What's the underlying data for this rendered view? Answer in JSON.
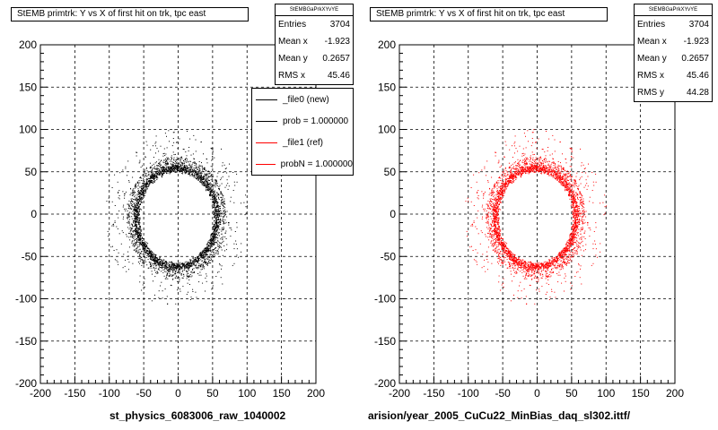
{
  "chart_data": [
    {
      "type": "scatter",
      "title": "StEMB primtrk: Y vs X of first hit on trk, tpc east",
      "xlabel": "st_physics_6083006_raw_1040002",
      "ylabel": "",
      "xlim": [
        -200,
        200
      ],
      "ylim": [
        -200,
        200
      ],
      "xticks": [
        -200,
        -150,
        -100,
        -50,
        0,
        50,
        100,
        150,
        200
      ],
      "yticks": [
        -200,
        -150,
        -100,
        -50,
        0,
        50,
        100,
        150,
        200
      ],
      "grid": true,
      "marker_color": "#000000",
      "ring": {
        "center_x": -2,
        "center_y": -4,
        "radius_x": 58,
        "radius_y": 58
      },
      "stats": {
        "header": "StEMBGaPrkXYvYE",
        "rows": [
          {
            "label": "Entries",
            "value": "3704"
          },
          {
            "label": "Mean x",
            "value": "-1.923"
          },
          {
            "label": "Mean y",
            "value": "0.2657"
          },
          {
            "label": "RMS x",
            "value": "45.46"
          }
        ]
      },
      "legend": [
        {
          "label": "_file0 (new)",
          "color": "#000000"
        },
        {
          "label": "prob = 1.000000",
          "color": "#000000"
        },
        {
          "label": "_file1 (ref)",
          "color": "#ff0000"
        },
        {
          "label": "probN = 1.000000",
          "color": "#ff0000"
        }
      ]
    },
    {
      "type": "scatter",
      "title": "StEMB primtrk: Y vs X of first hit on trk, tpc east",
      "xlabel": "arision/year_2005_CuCu22_MinBias_daq_sl302.ittf/",
      "ylabel": "",
      "xlim": [
        -200,
        200
      ],
      "ylim": [
        -200,
        200
      ],
      "xticks": [
        -200,
        -150,
        -100,
        -50,
        0,
        50,
        100,
        150,
        200
      ],
      "yticks": [
        -200,
        -150,
        -100,
        -50,
        0,
        50,
        100,
        150,
        200
      ],
      "grid": true,
      "marker_color": "#ff0000",
      "ring": {
        "center_x": -2,
        "center_y": -4,
        "radius_x": 58,
        "radius_y": 58
      },
      "stats": {
        "header": "StEMBGaPrkXYvYE",
        "rows": [
          {
            "label": "Entries",
            "value": "3704"
          },
          {
            "label": "Mean x",
            "value": "-1.923"
          },
          {
            "label": "Mean y",
            "value": "0.2657"
          },
          {
            "label": "RMS x",
            "value": "45.46"
          },
          {
            "label": "RMS y",
            "value": "44.28"
          }
        ]
      }
    }
  ]
}
